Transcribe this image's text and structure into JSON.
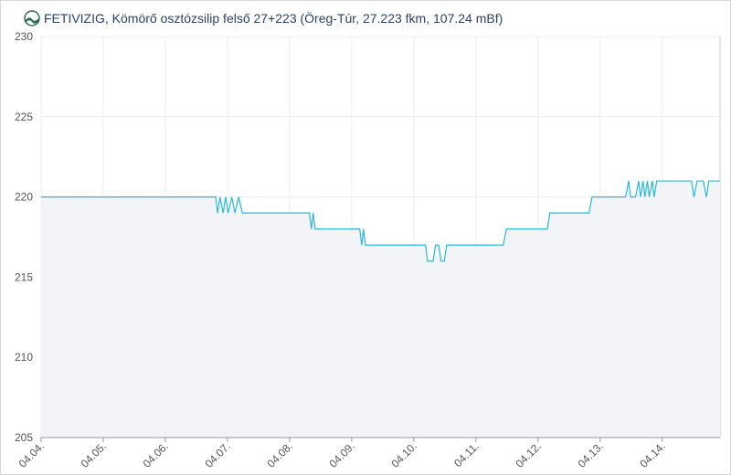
{
  "chart_data": {
    "type": "area",
    "title": "FETIVIZIG, Kömörő osztózsilip felső 27+223 (Öreg-Túr, 27.223 fkm, 107.24 mBf)",
    "x": [
      0,
      2.81,
      2.84,
      2.88,
      2.93,
      2.97,
      3.01,
      3.07,
      3.12,
      3.18,
      3.24,
      4.32,
      4.35,
      4.38,
      4.41,
      5.13,
      5.16,
      5.19,
      5.22,
      6.19,
      6.22,
      6.31,
      6.35,
      6.4,
      6.44,
      6.49,
      6.53,
      7.44,
      7.49,
      8.15,
      8.19,
      8.82,
      8.87,
      9.41,
      9.46,
      9.49,
      9.57,
      9.62,
      9.65,
      9.69,
      9.72,
      9.76,
      9.79,
      9.84,
      9.87,
      9.91,
      10.47,
      10.51,
      10.56,
      10.66,
      10.71,
      10.75,
      10.93
    ],
    "series": [
      {
        "color": "#29b8d8",
        "fill": "#f3f4f8",
        "values": [
          220,
          220,
          219,
          220,
          219,
          220,
          219,
          220,
          219,
          220,
          219,
          219,
          218,
          219,
          218,
          218,
          217,
          218,
          217,
          217,
          216,
          216,
          217,
          217,
          216,
          216,
          217,
          217,
          218,
          218,
          219,
          219,
          220,
          220,
          221,
          220,
          220,
          221,
          220,
          221,
          220,
          221,
          220,
          221,
          220,
          221,
          221,
          220,
          221,
          221,
          220,
          221,
          221
        ]
      }
    ],
    "xlim": [
      0,
      10.93
    ],
    "xticks": [
      {
        "value": 0,
        "label": "04.04."
      },
      {
        "value": 1,
        "label": "04.05."
      },
      {
        "value": 2,
        "label": "04.06."
      },
      {
        "value": 3,
        "label": "04.07."
      },
      {
        "value": 4,
        "label": "04.08."
      },
      {
        "value": 5,
        "label": "04.09."
      },
      {
        "value": 6,
        "label": "04.10."
      },
      {
        "value": 7,
        "label": "04.11."
      },
      {
        "value": 8,
        "label": "04.12."
      },
      {
        "value": 9,
        "label": "04.13."
      },
      {
        "value": 10,
        "label": "04.14."
      }
    ],
    "ylim": [
      205,
      230
    ],
    "yticks": [
      205,
      210,
      215,
      220,
      225,
      230
    ],
    "grid": true
  }
}
